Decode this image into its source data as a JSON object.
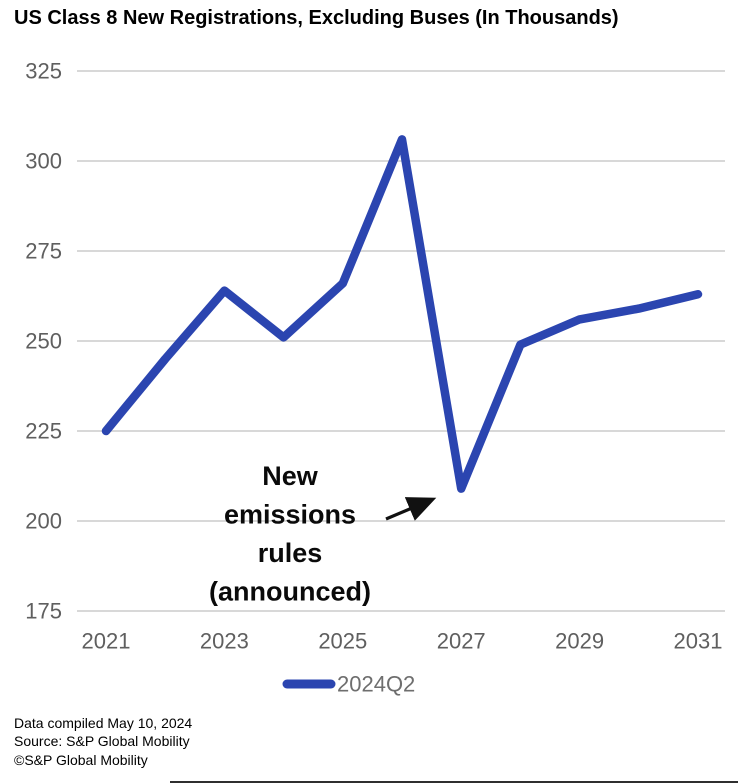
{
  "title": "US Class 8 New Registrations, Excluding Buses (In Thousands)",
  "chart_data": {
    "type": "line",
    "title": "US Class 8 New Registrations, Excluding Buses (In Thousands)",
    "x": [
      2021,
      2022,
      2023,
      2024,
      2025,
      2026,
      2027,
      2028,
      2029,
      2030,
      2031
    ],
    "series": [
      {
        "name": "2024Q2",
        "values": [
          225,
          245,
          264,
          251,
          266,
          306,
          209,
          249,
          256,
          259,
          263
        ]
      }
    ],
    "xticks": [
      "2021",
      "2023",
      "2025",
      "2027",
      "2029",
      "2031"
    ],
    "xtick_years": [
      2021,
      2023,
      2025,
      2027,
      2029,
      2031
    ],
    "yticks": [
      325,
      300,
      275,
      250,
      225,
      200,
      175
    ],
    "ylim": [
      175,
      325
    ],
    "grid": "horizontal only",
    "legend_position": "bottom",
    "annotation": {
      "text_lines": [
        "New",
        "emissions",
        "rules",
        "(announced)"
      ],
      "target_year": 2027,
      "target_value": 209
    }
  },
  "legend": {
    "label": "2024Q2"
  },
  "footer": {
    "line1": "Data compiled May 10, 2024",
    "line2": "Source: S&P Global Mobility",
    "line3": "©S&P Global Mobility"
  },
  "colors": {
    "line": "#2b45b0",
    "grid": "#d8d8d8",
    "tick_text": "#5f5f5f",
    "legend_text": "#6e6e6e",
    "annotation_text": "#0a0a0a",
    "arrow": "#111111"
  }
}
